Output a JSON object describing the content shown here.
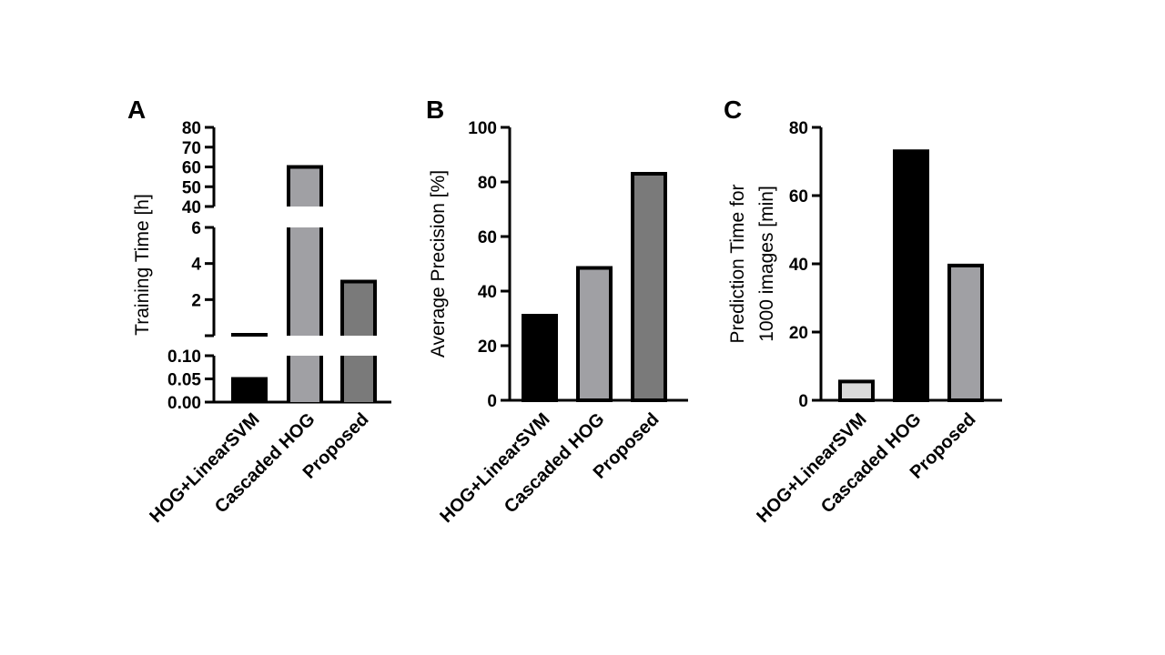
{
  "chart_data": [
    {
      "panel": "A",
      "type": "bar",
      "title": "",
      "xlabel": "",
      "ylabel": "Training Time [h]",
      "categories": [
        "HOG+LinearSVM",
        "Cascaded HOG",
        "Proposed"
      ],
      "values": [
        0.05,
        60,
        3
      ],
      "units": "h",
      "axis_breaks": [
        {
          "ylim": [
            0,
            0.1
          ],
          "ticks": [
            "0.00",
            "0.05",
            "0.10"
          ]
        },
        {
          "ylim": [
            0,
            6
          ],
          "ticks": [
            "2",
            "4",
            "6"
          ]
        },
        {
          "ylim": [
            40,
            80
          ],
          "ticks": [
            "40",
            "50",
            "60",
            "70",
            "80"
          ]
        }
      ],
      "fill_colors": [
        "#000000",
        "#a0a0a4",
        "#7a7a7a"
      ],
      "grid": false
    },
    {
      "panel": "B",
      "type": "bar",
      "title": "",
      "xlabel": "",
      "ylabel": "Average Precision [%]",
      "categories": [
        "HOG+LinearSVM",
        "Cascaded HOG",
        "Proposed"
      ],
      "values": [
        31,
        48.5,
        83
      ],
      "units": "%",
      "ylim": [
        0,
        100
      ],
      "ticks": [
        "0",
        "20",
        "40",
        "60",
        "80",
        "100"
      ],
      "fill_colors": [
        "#000000",
        "#a0a0a4",
        "#7a7a7a"
      ],
      "grid": false
    },
    {
      "panel": "C",
      "type": "bar",
      "title": "",
      "xlabel": "",
      "ylabel_lines": [
        "Prediction Time for",
        "1000 images [min]"
      ],
      "categories": [
        "HOG+LinearSVM",
        "Cascaded HOG",
        "Proposed"
      ],
      "values": [
        5.5,
        73,
        39.5
      ],
      "units": "min",
      "ylim": [
        0,
        80
      ],
      "ticks": [
        "0",
        "20",
        "40",
        "60",
        "80"
      ],
      "fill_colors": [
        "#d9d9d9",
        "#000000",
        "#a0a0a4"
      ],
      "grid": false
    }
  ]
}
